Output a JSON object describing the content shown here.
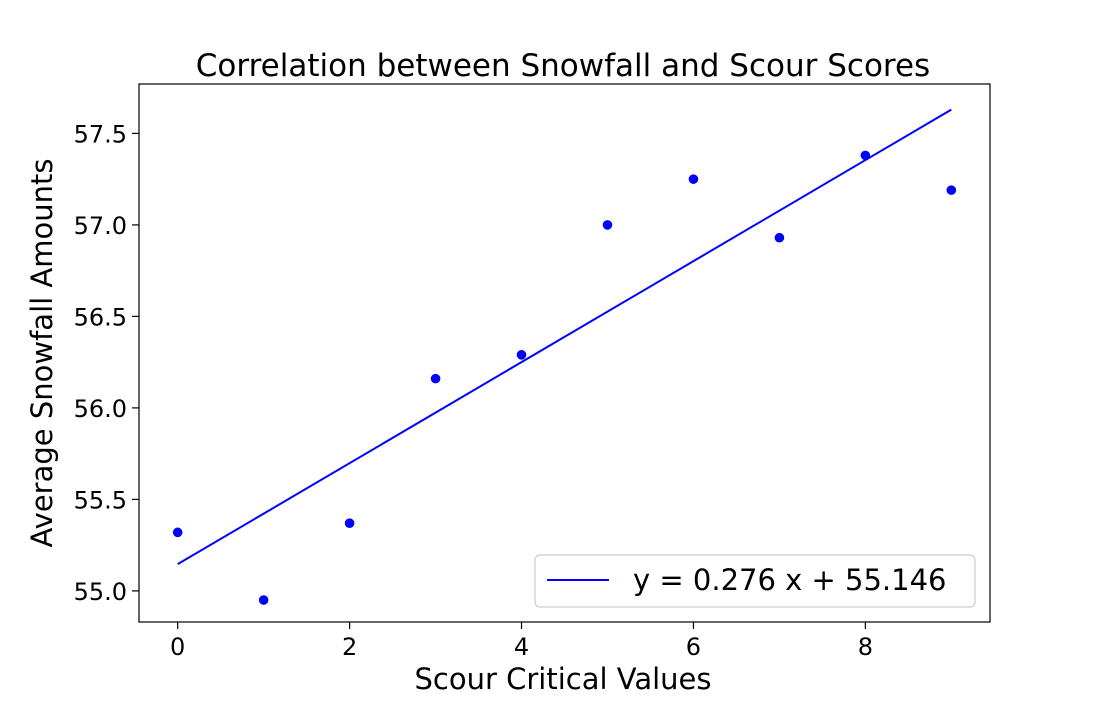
{
  "chart_data": {
    "type": "scatter",
    "title": "Correlation between Snowfall and Scour Scores",
    "xlabel": "Scour Critical Values",
    "ylabel": "Average Snowfall Amounts",
    "xlim": [
      -0.45,
      9.45
    ],
    "ylim": [
      54.83,
      57.77
    ],
    "x_ticks": [
      0,
      2,
      4,
      6,
      8
    ],
    "y_ticks": [
      55.0,
      55.5,
      56.0,
      56.5,
      57.0,
      57.5
    ],
    "x_tick_labels": [
      "0",
      "2",
      "4",
      "6",
      "8"
    ],
    "y_tick_labels": [
      "55.0",
      "55.5",
      "56.0",
      "56.5",
      "57.0",
      "57.5"
    ],
    "grid": false,
    "legend_position": "lower-right",
    "series": [
      {
        "kind": "scatter",
        "color": "#0000ff",
        "x": [
          0,
          1,
          2,
          3,
          4,
          5,
          6,
          7,
          8,
          9
        ],
        "y": [
          55.32,
          54.95,
          55.37,
          56.16,
          56.29,
          57.0,
          57.25,
          56.93,
          57.38,
          57.19
        ]
      },
      {
        "kind": "line",
        "name": "y = 0.276 x + 55.146",
        "color": "#0000ff",
        "slope": 0.276,
        "intercept": 55.146,
        "x_range": [
          0,
          9
        ]
      }
    ]
  }
}
